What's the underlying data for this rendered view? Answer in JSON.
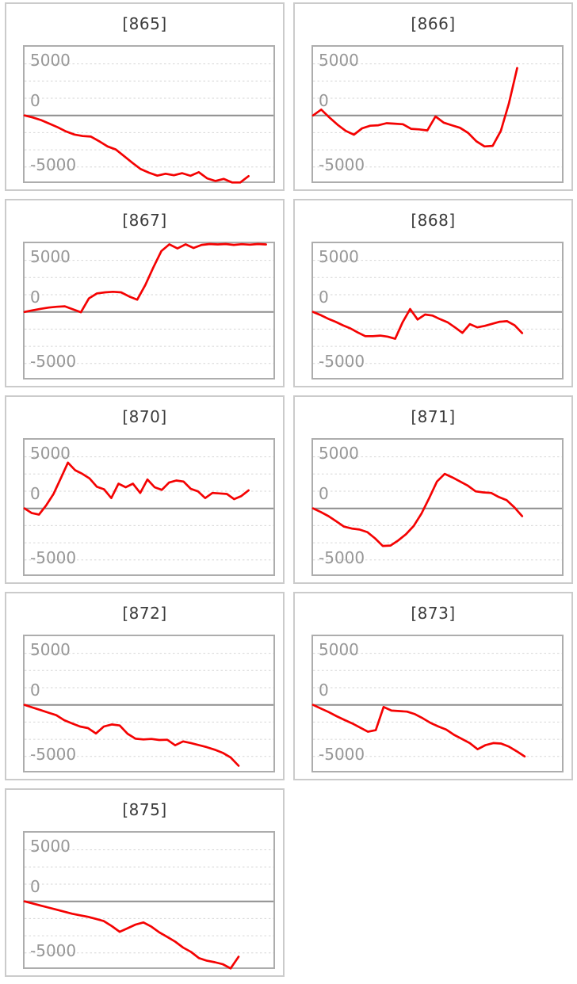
{
  "page": {
    "background": "#ffffff",
    "layout": "3x2-grid-of-charts-last-row-single"
  },
  "colors": {
    "series_line": "#f40202",
    "zero_line": "#8d8d8d",
    "gridline": "#d6d6d6",
    "plot_border": "#adadad",
    "card_border": "#cbcbcb",
    "title_text": "#3b3b3b",
    "tick_text": "#979797"
  },
  "axis": {
    "tick_labels": [
      "5000",
      "0",
      "-5000"
    ],
    "tick_values": [
      5000,
      0,
      -5000
    ],
    "gridline_values": [
      5000,
      3333,
      1667,
      -1667,
      -3333,
      -5000
    ],
    "zero_line_value": 0,
    "ylim": [
      -6450,
      6660
    ],
    "grid_style": "dotted",
    "x_axis_labels": "none"
  },
  "chart_data": [
    {
      "type": "line",
      "title": "[865]",
      "x_end": 0.9,
      "values": [
        0,
        -200,
        -450,
        -800,
        -1150,
        -1550,
        -1850,
        -2000,
        -2050,
        -2500,
        -3000,
        -3300,
        -3950,
        -4600,
        -5200,
        -5550,
        -5840,
        -5650,
        -5800,
        -5600,
        -5850,
        -5500,
        -6100,
        -6350,
        -6150,
        -6500,
        -6500,
        -5880
      ]
    },
    {
      "type": "line",
      "title": "[866]",
      "x_end": 0.82,
      "values": [
        0,
        570,
        -200,
        -900,
        -1500,
        -1870,
        -1250,
        -1000,
        -950,
        -750,
        -800,
        -850,
        -1300,
        -1350,
        -1450,
        -100,
        -700,
        -950,
        -1200,
        -1700,
        -2500,
        -3000,
        -2950,
        -1500,
        1200,
        4590
      ]
    },
    {
      "type": "line",
      "title": "[867]",
      "x_end": 0.97,
      "values": [
        0,
        150,
        300,
        420,
        500,
        545,
        250,
        -30,
        1310,
        1800,
        1900,
        1950,
        1900,
        1500,
        1180,
        2600,
        4300,
        5900,
        6550,
        6150,
        6550,
        6200,
        6500,
        6580,
        6540,
        6580,
        6500,
        6570,
        6520,
        6580,
        6540
      ]
    },
    {
      "type": "line",
      "title": "[868]",
      "x_end": 0.84,
      "values": [
        0,
        -300,
        -650,
        -950,
        -1300,
        -1600,
        -2000,
        -2350,
        -2350,
        -2300,
        -2400,
        -2600,
        -1000,
        280,
        -740,
        -250,
        -350,
        -700,
        -1000,
        -1500,
        -2030,
        -1180,
        -1500,
        -1350,
        -1150,
        -950,
        -900,
        -1300,
        -2050
      ]
    },
    {
      "type": "line",
      "title": "[870]",
      "x_end": 0.9,
      "values": [
        0,
        -450,
        -600,
        300,
        1400,
        2900,
        4440,
        3700,
        3350,
        2900,
        2100,
        1850,
        1000,
        2400,
        2050,
        2400,
        1500,
        2800,
        2050,
        1800,
        2500,
        2700,
        2600,
        1900,
        1650,
        1000,
        1500,
        1450,
        1400,
        900,
        1200,
        1750
      ]
    },
    {
      "type": "line",
      "title": "[871]",
      "x_end": 0.84,
      "values": [
        0,
        -350,
        -750,
        -1250,
        -1770,
        -1950,
        -2050,
        -2300,
        -2900,
        -3640,
        -3600,
        -3100,
        -2500,
        -1700,
        -500,
        1000,
        2600,
        3350,
        3000,
        2600,
        2200,
        1650,
        1550,
        1500,
        1100,
        800,
        100,
        -750
      ]
    },
    {
      "type": "line",
      "title": "[872]",
      "x_end": 0.86,
      "values": [
        0,
        -250,
        -500,
        -750,
        -1000,
        -1480,
        -1800,
        -2100,
        -2250,
        -2770,
        -2100,
        -1900,
        -2000,
        -2800,
        -3280,
        -3350,
        -3300,
        -3400,
        -3380,
        -3920,
        -3540,
        -3700,
        -3900,
        -4100,
        -4350,
        -4650,
        -5100,
        -5900
      ]
    },
    {
      "type": "line",
      "title": "[873]",
      "x_end": 0.85,
      "values": [
        0,
        -350,
        -700,
        -1100,
        -1450,
        -1800,
        -2200,
        -2600,
        -2450,
        -200,
        -550,
        -600,
        -650,
        -900,
        -1300,
        -1750,
        -2100,
        -2400,
        -2900,
        -3300,
        -3700,
        -4300,
        -3900,
        -3700,
        -3750,
        -4050,
        -4500,
        -5000
      ]
    },
    {
      "type": "line",
      "title": "[875]",
      "x_end": 0.86,
      "values": [
        0,
        -200,
        -400,
        -600,
        -800,
        -1000,
        -1200,
        -1350,
        -1500,
        -1700,
        -1910,
        -2400,
        -2950,
        -2600,
        -2250,
        -2040,
        -2450,
        -3000,
        -3450,
        -3900,
        -4480,
        -4900,
        -5500,
        -5755,
        -5900,
        -6090,
        -6500,
        -5370
      ]
    }
  ]
}
